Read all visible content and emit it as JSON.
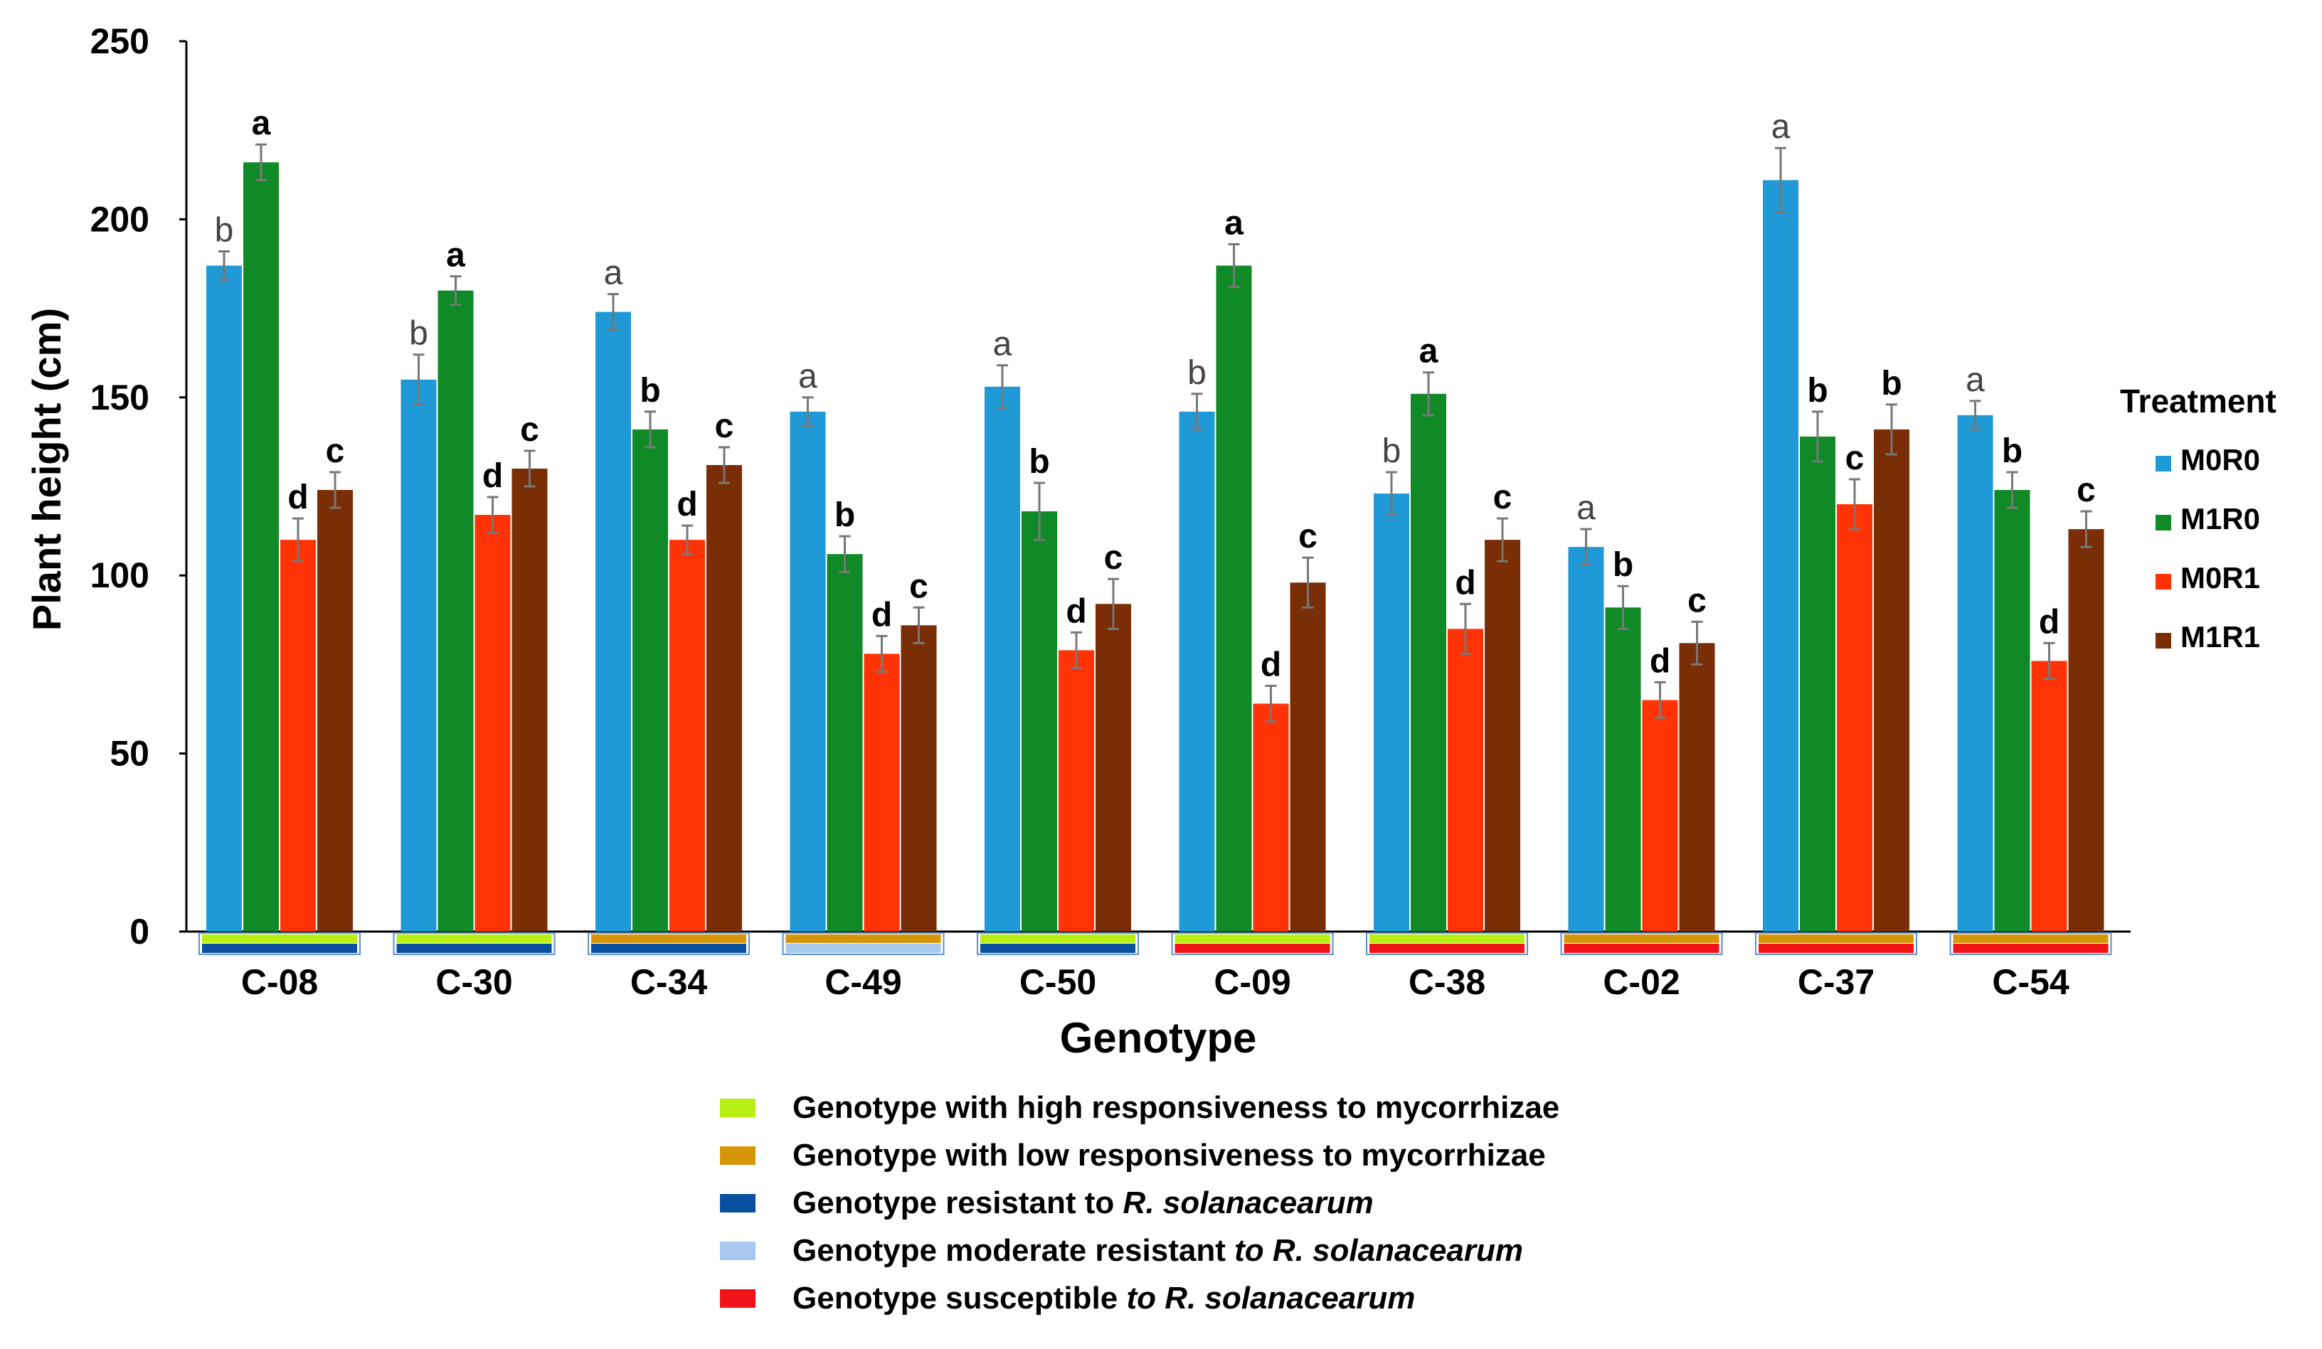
{
  "chart_data": {
    "type": "bar",
    "ylabel": "Plant height (cm)",
    "xlabel": "Genotype",
    "ylim": [
      0,
      250
    ],
    "yticks": [
      0,
      50,
      100,
      150,
      200,
      250
    ],
    "legend_title": "Treatment",
    "legend_position": "right",
    "categories": [
      "C-08",
      "C-30",
      "C-34",
      "C-49",
      "C-50",
      "C-09",
      "C-38",
      "C-02",
      "C-37",
      "C-54"
    ],
    "series": [
      {
        "name": "M0R0",
        "color": "#1f9ad6",
        "values": [
          187,
          155,
          174,
          146,
          153,
          146,
          123,
          108,
          211,
          145
        ],
        "errors": [
          4,
          7,
          5,
          4,
          6,
          5,
          6,
          5,
          9,
          4
        ],
        "letters": [
          "b",
          "b",
          "a",
          "a",
          "a",
          "b",
          "b",
          "a",
          "a",
          "a"
        ]
      },
      {
        "name": "M1R0",
        "color": "#108a26",
        "values": [
          216,
          180,
          141,
          106,
          118,
          187,
          151,
          91,
          139,
          124
        ],
        "errors": [
          5,
          4,
          5,
          5,
          8,
          6,
          6,
          6,
          7,
          5
        ],
        "letters": [
          "a",
          "a",
          "b",
          "b",
          "b",
          "a",
          "a",
          "b",
          "b",
          "b"
        ]
      },
      {
        "name": "M0R1",
        "color": "#ff3305",
        "values": [
          110,
          117,
          110,
          78,
          79,
          64,
          85,
          65,
          120,
          76
        ],
        "errors": [
          6,
          5,
          4,
          5,
          5,
          5,
          7,
          5,
          7,
          5
        ],
        "letters": [
          "d",
          "d",
          "d",
          "d",
          "d",
          "d",
          "d",
          "d",
          "c",
          "d"
        ]
      },
      {
        "name": "M1R1",
        "color": "#7a2e05",
        "values": [
          124,
          130,
          131,
          86,
          92,
          98,
          110,
          81,
          141,
          113
        ],
        "errors": [
          5,
          5,
          5,
          5,
          7,
          7,
          6,
          6,
          7,
          5
        ],
        "letters": [
          "c",
          "c",
          "c",
          "c",
          "c",
          "c",
          "c",
          "c",
          "b",
          "c"
        ]
      }
    ],
    "genotype_class": {
      "mycorrhizal_responsiveness": [
        "high",
        "high",
        "low",
        "low",
        "high",
        "high",
        "high",
        "low",
        "low",
        "low"
      ],
      "resistance": [
        "resistant",
        "resistant",
        "resistant",
        "moderate",
        "resistant",
        "susceptible",
        "susceptible",
        "susceptible",
        "susceptible",
        "susceptible"
      ]
    },
    "class_colors": {
      "high": "#b8f014",
      "low": "#d6960a",
      "resistant": "#0a50a0",
      "moderate": "#a8c8ee",
      "susceptible": "#f01418"
    }
  },
  "key": {
    "high_text": "Genotype with high responsiveness to mycorrhizae",
    "low_text": "Genotype with low responsiveness to mycorrhizae",
    "resistant_prefix": "Genotype resistant to ",
    "resistant_italic": "R. solanacearum",
    "moderate_prefix": "Genotype moderate resistant ",
    "moderate_italic": "to R. solanacearum",
    "susceptible_prefix": "Genotype susceptible ",
    "susceptible_italic": "to R. solanacearum"
  }
}
